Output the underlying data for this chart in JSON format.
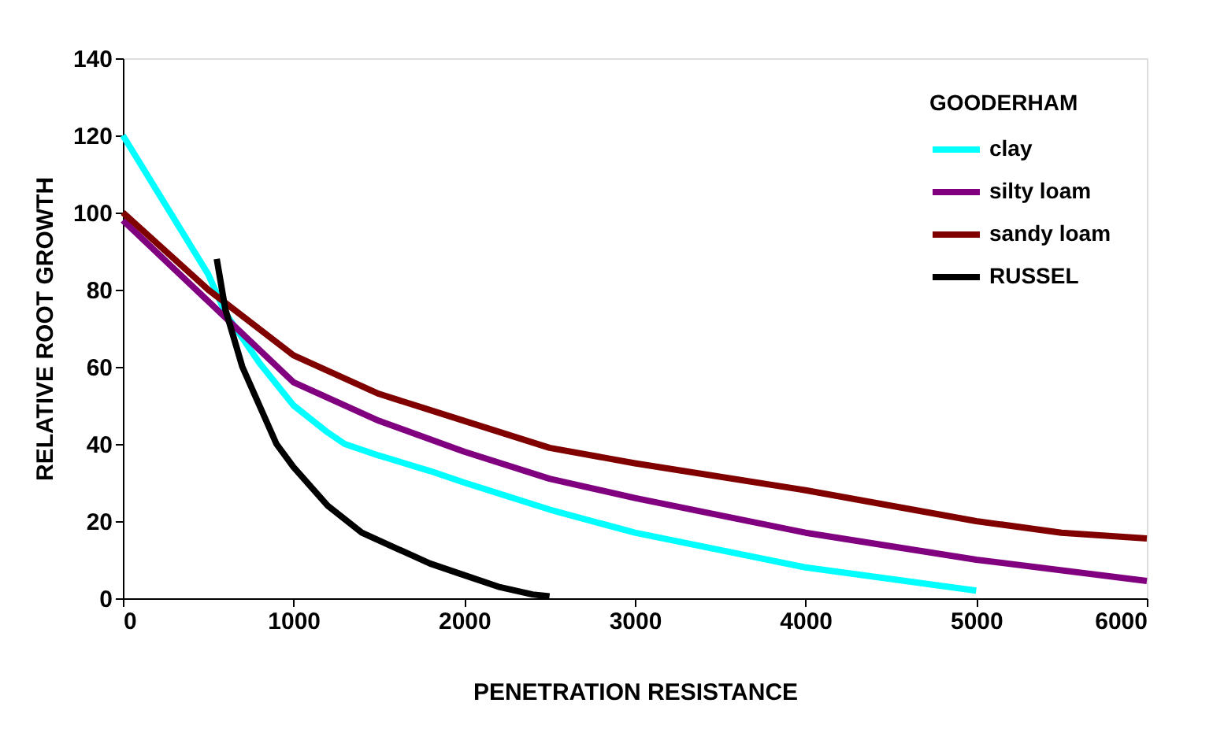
{
  "chart_data": {
    "type": "line",
    "xlabel": "PENETRATION RESISTANCE",
    "ylabel": "RELATIVE ROOT GROWTH",
    "legend_title": "GOODERHAM",
    "legend": "top right",
    "grid": false,
    "marker": "none",
    "line_style": "solid",
    "xlim": [
      0,
      6000
    ],
    "xticks": [
      0,
      1000,
      2000,
      3000,
      4000,
      5000,
      6000
    ],
    "ylim": [
      0,
      140
    ],
    "yticks": [
      0,
      20,
      40,
      60,
      80,
      100,
      120,
      140
    ],
    "series": [
      {
        "name": "clay",
        "color": "#00ffff",
        "x": [
          0,
          500,
          600,
          800,
          1000,
          1200,
          1300,
          1500,
          1800,
          2000,
          2500,
          3000,
          4000,
          5000
        ],
        "values": [
          120,
          84,
          74,
          61,
          50,
          43,
          40,
          37,
          33,
          30,
          23,
          17,
          8,
          2
        ]
      },
      {
        "name": "silty loam",
        "color": "#800080",
        "x": [
          0,
          500,
          1000,
          1500,
          2000,
          2500,
          3000,
          4000,
          5000,
          6000
        ],
        "values": [
          98,
          77,
          56,
          46,
          38,
          31,
          26,
          17,
          10,
          4.5
        ]
      },
      {
        "name": "sandy loam",
        "color": "#800000",
        "x": [
          0,
          500,
          1000,
          1500,
          2000,
          2500,
          3000,
          4000,
          5000,
          5500,
          6000
        ],
        "values": [
          100,
          80,
          63,
          53,
          46,
          39,
          35,
          28,
          20,
          17,
          15.5
        ]
      },
      {
        "name": "RUSSEL",
        "color": "#000000",
        "x": [
          550,
          600,
          700,
          800,
          900,
          1000,
          1200,
          1400,
          1600,
          1800,
          2000,
          2200,
          2400,
          2500
        ],
        "values": [
          88,
          75,
          60,
          50,
          40,
          34,
          24,
          17,
          13,
          9,
          6,
          3,
          1,
          0.5
        ]
      }
    ]
  }
}
